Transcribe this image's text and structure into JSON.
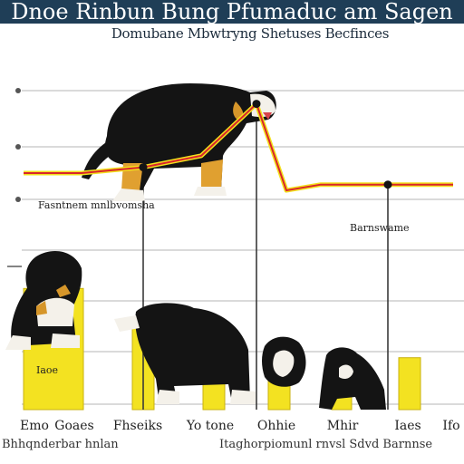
{
  "chart_data": {
    "type": "bar",
    "title": "Dnoe Rinbun Bung Pfumaduc am Sagen",
    "subtitle": "Domubane Mbwtryng Shetuses Becfinces",
    "categories": [
      "Emo",
      "Goaes",
      "Fhseiks",
      "Yo tone",
      "Ohhie",
      "Mhir",
      "Iaes",
      "Ifo"
    ],
    "values": [
      2.1,
      1.5,
      0.9,
      1.1,
      1.0,
      0.9,
      0.9,
      0.9
    ],
    "bar_label": "Iaoe",
    "line_series": {
      "name": "Fasntnem mnlbvomsha",
      "values": [
        4.1,
        4.1,
        4.2,
        4.7,
        5.3,
        3.8,
        3.9,
        3.9
      ],
      "color_inner": "#d9252b",
      "color_outer": "#f2e01c"
    },
    "line_annotation": "Barnswame",
    "xlabel_left": "Bhhqnderbar hnlan",
    "xlabel_right": "Itaghorpiomunl rnvsl Sdvd Barnnse",
    "ylim": [
      0,
      6
    ],
    "grid": true,
    "colors": {
      "bar": "#f3e221",
      "bar_edge": "#c9b20e",
      "grid": "#c4c4c4",
      "title_bg": "#1f3e57"
    },
    "illustrations": [
      "dog-adult-standing",
      "dog-puppy-sitting",
      "dog-puppy-lying",
      "dog-puppy-peeking",
      "dog-puppy-small"
    ]
  }
}
